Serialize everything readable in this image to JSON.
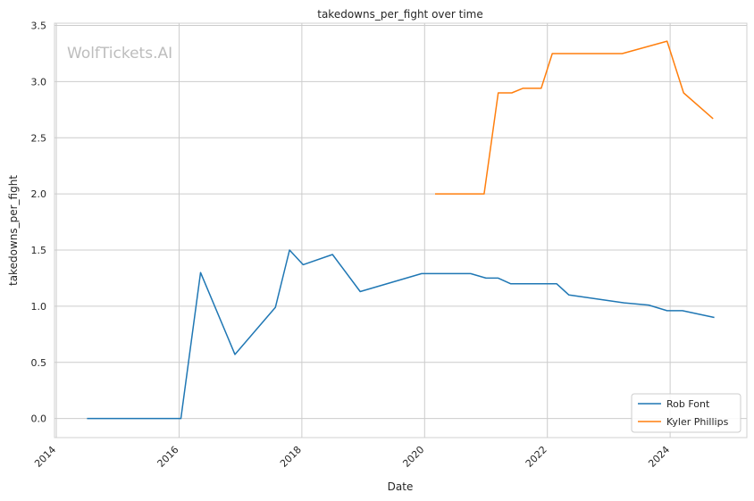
{
  "watermark": "WolfTickets.AI",
  "chart_data": {
    "type": "line",
    "title": "takedowns_per_fight over time",
    "xlabel": "Date",
    "ylabel": "takedowns_per_fight",
    "xlim": [
      2013.97,
      2025.25
    ],
    "ylim": [
      -0.17,
      3.52
    ],
    "x_ticks": [
      2014,
      2016,
      2018,
      2020,
      2022,
      2024
    ],
    "y_ticks": [
      0.0,
      0.5,
      1.0,
      1.5,
      2.0,
      2.5,
      3.0,
      3.5
    ],
    "x_tick_labels": [
      "2014",
      "2016",
      "2018",
      "2020",
      "2022",
      "2024"
    ],
    "y_tick_labels": [
      "0.0",
      "0.5",
      "1.0",
      "1.5",
      "2.0",
      "2.5",
      "3.0",
      "3.5"
    ],
    "grid": true,
    "legend_position": "bottom-right",
    "series": [
      {
        "name": "Rob Font",
        "color": "#1f77b4",
        "x": [
          2014.5,
          2016.03,
          2016.35,
          2016.91,
          2017.57,
          2017.8,
          2018.02,
          2018.5,
          2018.95,
          2019.95,
          2020.75,
          2021.0,
          2021.2,
          2021.4,
          2022.15,
          2022.35,
          2023.25,
          2023.65,
          2023.95,
          2024.2,
          2024.72
        ],
        "y": [
          0.0,
          0.0,
          1.3,
          0.57,
          0.99,
          1.5,
          1.37,
          1.46,
          1.13,
          1.29,
          1.29,
          1.25,
          1.25,
          1.2,
          1.2,
          1.1,
          1.03,
          1.01,
          0.96,
          0.96,
          0.9
        ]
      },
      {
        "name": "Kyler Phillips",
        "color": "#ff7f0e",
        "x": [
          2020.17,
          2020.97,
          2021.2,
          2021.42,
          2021.6,
          2021.9,
          2022.08,
          2022.45,
          2023.22,
          2023.95,
          2024.22,
          2024.7
        ],
        "y": [
          2.0,
          2.0,
          2.9,
          2.9,
          2.94,
          2.94,
          3.25,
          3.25,
          3.25,
          3.36,
          2.9,
          2.67
        ]
      }
    ]
  }
}
